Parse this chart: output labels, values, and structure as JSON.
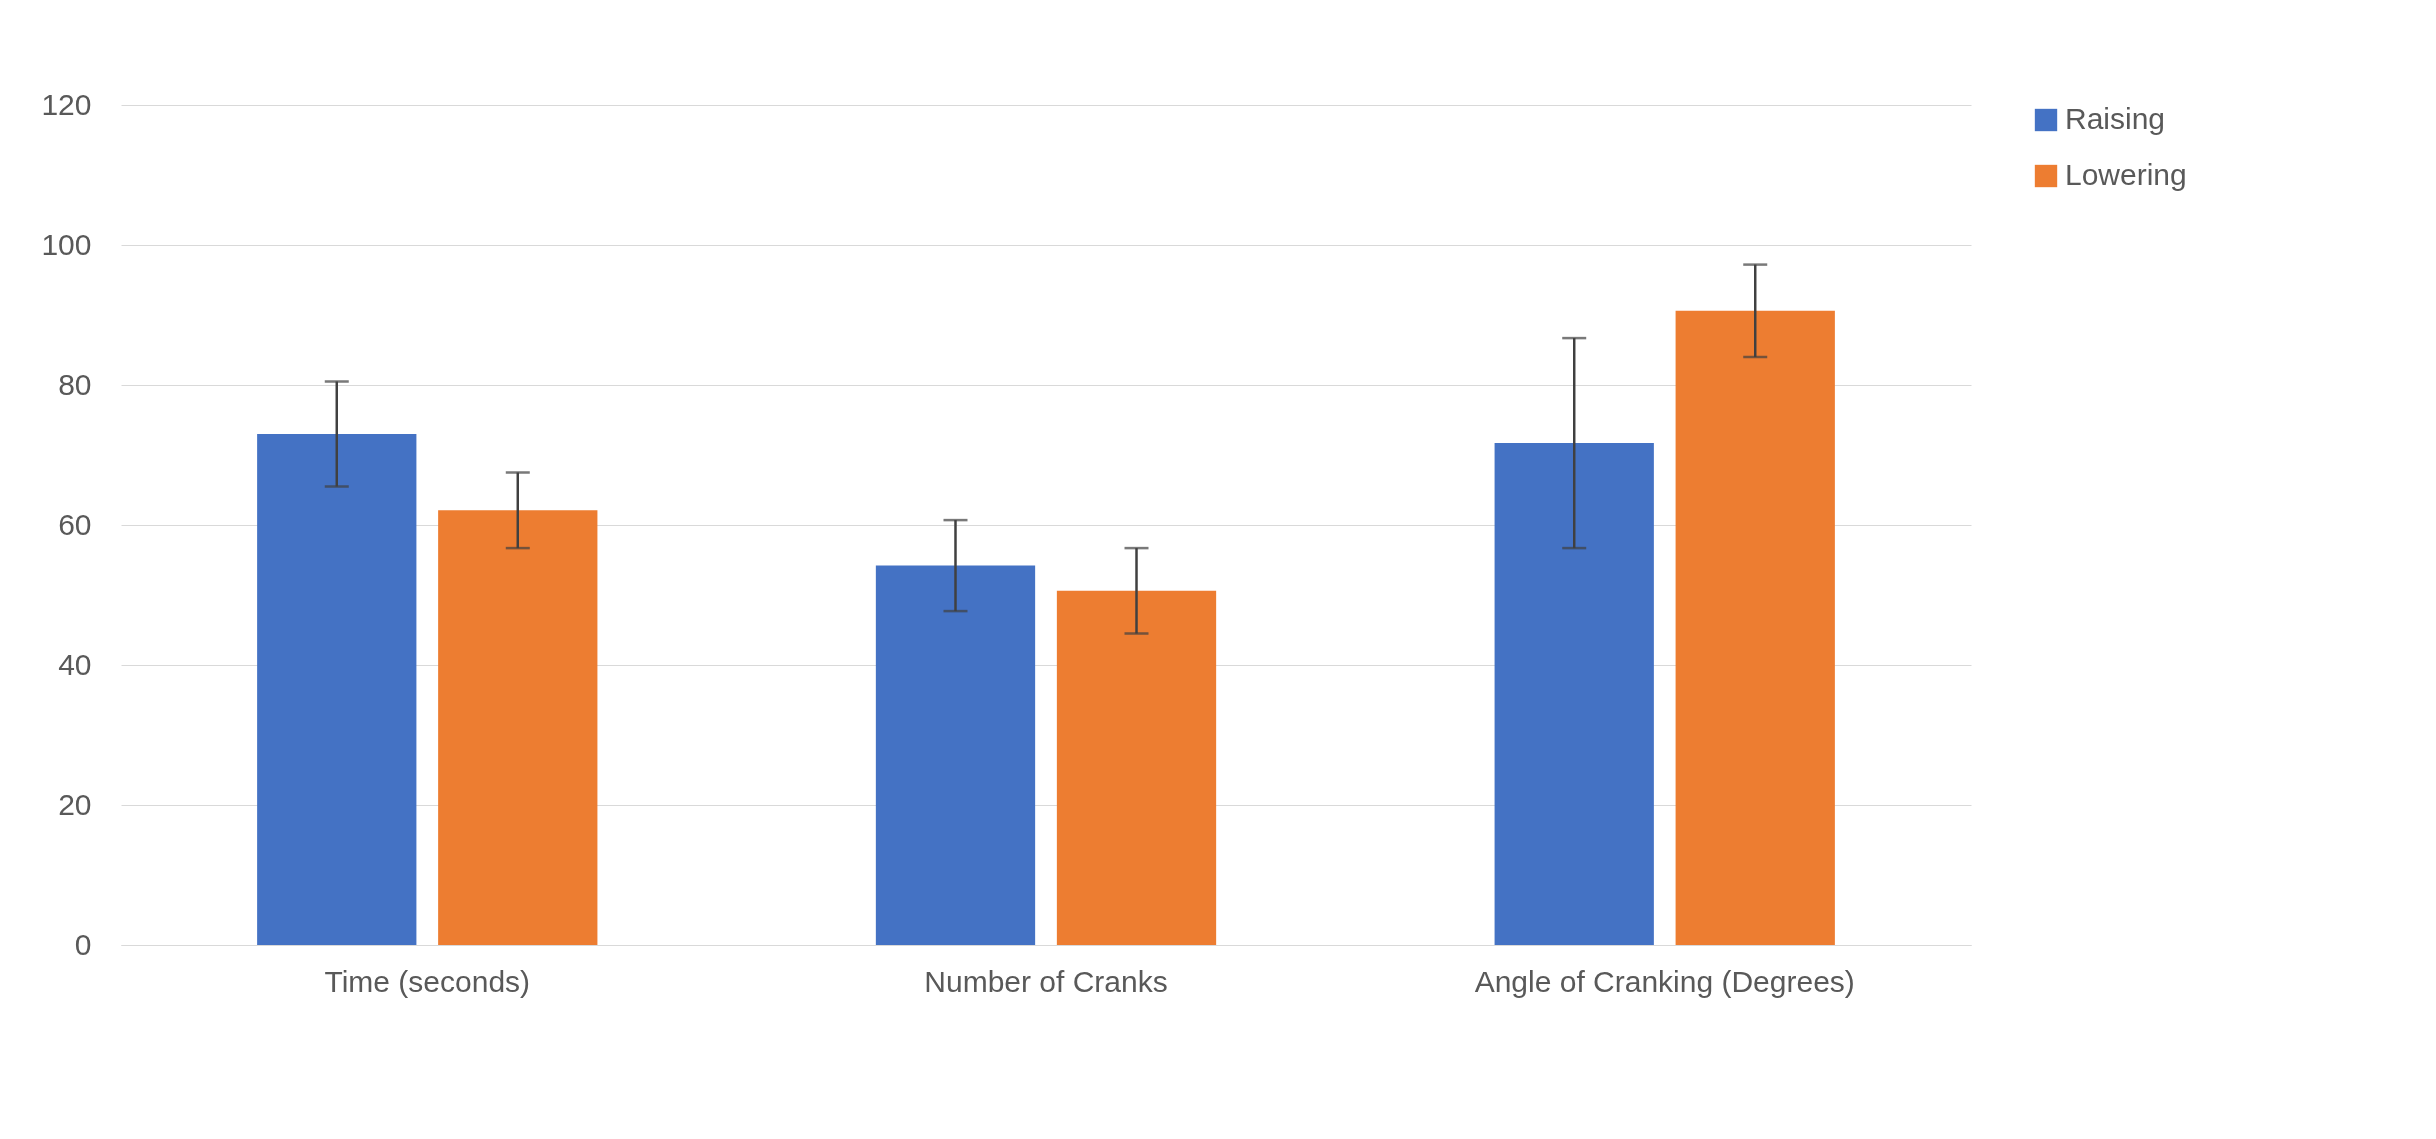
{
  "chart_data": {
    "type": "bar",
    "categories": [
      "Time (seconds)",
      "Number of Cranks",
      "Angle of Cranking (Degrees)"
    ],
    "series": [
      {
        "name": "Raising",
        "color": "#4472c4",
        "values": [
          73.0,
          54.2,
          71.7
        ],
        "errors": [
          7.5,
          6.5,
          15.0
        ]
      },
      {
        "name": "Lowering",
        "color": "#ed7d31",
        "values": [
          62.1,
          50.6,
          90.6
        ],
        "errors": [
          5.4,
          6.1,
          6.6
        ]
      }
    ],
    "ylim": [
      0,
      120
    ],
    "yticks": [
      0,
      20,
      40,
      60,
      80,
      100,
      120
    ],
    "grid": "y",
    "legend": "right"
  }
}
